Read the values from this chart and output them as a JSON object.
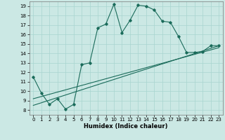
{
  "xlabel": "Humidex (Indice chaleur)",
  "ylabel": "",
  "bg_color": "#cbe8e4",
  "grid_color": "#a8d5cf",
  "line_color": "#1a6b5a",
  "xlim": [
    -0.5,
    23.5
  ],
  "ylim": [
    7.5,
    19.5
  ],
  "xticks": [
    0,
    1,
    2,
    3,
    4,
    5,
    6,
    7,
    8,
    9,
    10,
    11,
    12,
    13,
    14,
    15,
    16,
    17,
    18,
    19,
    20,
    21,
    22,
    23
  ],
  "yticks": [
    8,
    9,
    10,
    11,
    12,
    13,
    14,
    15,
    16,
    17,
    18,
    19
  ],
  "main_x": [
    0,
    1,
    2,
    3,
    4,
    5,
    6,
    7,
    8,
    9,
    10,
    11,
    12,
    13,
    14,
    15,
    16,
    17,
    18,
    19,
    20,
    21,
    22,
    23
  ],
  "main_y": [
    11.5,
    9.8,
    8.6,
    9.2,
    8.1,
    8.6,
    12.8,
    13.0,
    16.7,
    17.1,
    19.2,
    16.2,
    17.5,
    19.1,
    19.0,
    18.6,
    17.4,
    17.3,
    15.8,
    14.1,
    14.1,
    14.2,
    14.8,
    14.8
  ],
  "line1_x": [
    0,
    23
  ],
  "line1_y": [
    8.5,
    14.8
  ],
  "line2_x": [
    0,
    23
  ],
  "line2_y": [
    9.2,
    14.6
  ]
}
